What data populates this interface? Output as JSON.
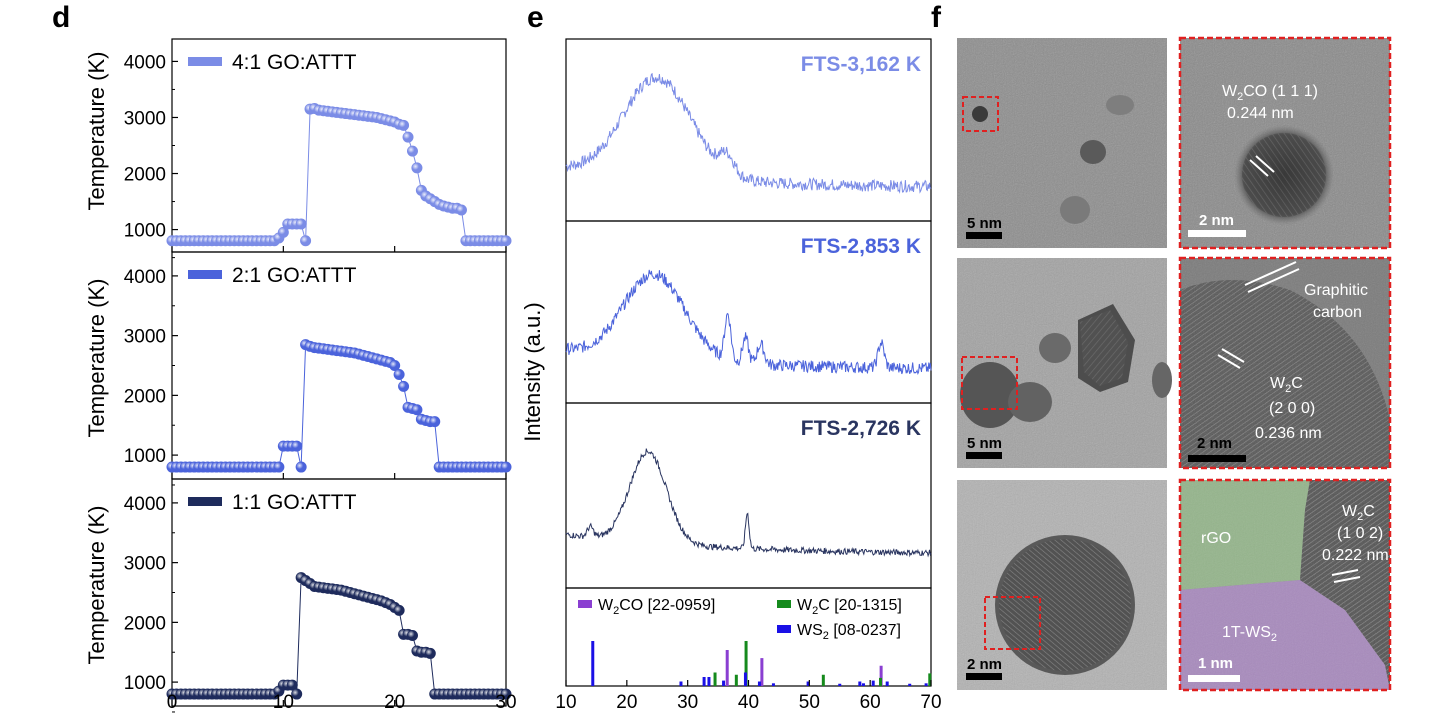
{
  "panel_labels": {
    "d": "d",
    "e": "e",
    "f": "f"
  },
  "chart_data": [
    {
      "type": "scatter",
      "panel": "d",
      "xlabel": "",
      "ylabel": "Temperature (K)",
      "xlim": [
        0,
        30
      ],
      "ylim": [
        600,
        4400
      ],
      "x_ticks": [
        "0",
        "10",
        "20",
        "30"
      ],
      "y_ticks": [
        "1000",
        "2000",
        "3000",
        "4000"
      ],
      "series": [
        {
          "name": "4:1 GO:ATTT",
          "color": "#7b8ce6",
          "x": [
            0,
            0.4,
            0.8,
            1.2,
            1.6,
            2,
            2.4,
            2.8,
            3.2,
            3.6,
            4,
            4.4,
            4.8,
            5.2,
            5.6,
            6,
            6.4,
            6.8,
            7.2,
            7.6,
            8,
            8.4,
            8.8,
            9.2,
            9.6,
            10,
            10.4,
            10.8,
            11.2,
            11.6,
            12,
            12.4,
            12.8,
            13.2,
            13.6,
            14,
            14.4,
            14.8,
            15.2,
            15.6,
            16,
            16.4,
            16.8,
            17.2,
            17.6,
            18,
            18.4,
            18.8,
            19.2,
            19.6,
            20,
            20.4,
            20.8,
            21.2,
            21.6,
            22,
            22.4,
            22.8,
            23.2,
            23.6,
            24,
            24.4,
            24.8,
            25.2,
            25.6,
            26,
            26.4,
            26.8,
            27.2,
            27.6,
            28,
            28.4,
            28.8,
            29.2,
            29.6,
            30
          ],
          "y": [
            800,
            800,
            800,
            800,
            800,
            800,
            800,
            800,
            800,
            800,
            800,
            800,
            800,
            800,
            800,
            800,
            800,
            800,
            800,
            800,
            800,
            800,
            800,
            800,
            850,
            950,
            1100,
            1100,
            1100,
            1100,
            800,
            3150,
            3160,
            3130,
            3120,
            3110,
            3100,
            3090,
            3080,
            3070,
            3060,
            3050,
            3040,
            3030,
            3020,
            3010,
            3000,
            2980,
            2960,
            2940,
            2920,
            2880,
            2860,
            2650,
            2400,
            2100,
            1700,
            1600,
            1550,
            1500,
            1450,
            1420,
            1400,
            1380,
            1380,
            1350,
            800,
            800,
            800,
            800,
            800,
            800,
            800,
            800,
            800,
            800
          ]
        },
        {
          "name": "2:1 GO:ATTT",
          "color": "#4b63db",
          "x": [
            0,
            0.4,
            0.8,
            1.2,
            1.6,
            2,
            2.4,
            2.8,
            3.2,
            3.6,
            4,
            4.4,
            4.8,
            5.2,
            5.6,
            6,
            6.4,
            6.8,
            7.2,
            7.6,
            8,
            8.4,
            8.8,
            9.2,
            9.6,
            10,
            10.4,
            10.8,
            11.2,
            11.6,
            12,
            12.4,
            12.8,
            13.2,
            13.6,
            14,
            14.4,
            14.8,
            15.2,
            15.6,
            16,
            16.4,
            16.8,
            17.2,
            17.6,
            18,
            18.4,
            18.8,
            19.2,
            19.6,
            20,
            20.4,
            20.8,
            21.2,
            21.6,
            22,
            22.4,
            22.8,
            23.2,
            23.6,
            24,
            24.4,
            24.8,
            25.2,
            25.6,
            26,
            26.4,
            26.8,
            27.2,
            27.6,
            28,
            28.4,
            28.8,
            29.2,
            29.6,
            30
          ],
          "y": [
            800,
            800,
            800,
            800,
            800,
            800,
            800,
            800,
            800,
            800,
            800,
            800,
            800,
            800,
            800,
            800,
            800,
            800,
            800,
            800,
            800,
            800,
            800,
            800,
            800,
            1150,
            1150,
            1150,
            1150,
            800,
            2850,
            2820,
            2800,
            2790,
            2780,
            2770,
            2760,
            2750,
            2740,
            2730,
            2720,
            2710,
            2690,
            2670,
            2650,
            2630,
            2610,
            2590,
            2570,
            2550,
            2500,
            2350,
            2150,
            1800,
            1780,
            1760,
            1600,
            1580,
            1560,
            1560,
            800,
            800,
            800,
            800,
            800,
            800,
            800,
            800,
            800,
            800,
            800,
            800,
            800,
            800,
            800,
            800
          ]
        },
        {
          "name": "1:1 GO:ATTT",
          "color": "#1e2b5c",
          "x": [
            0,
            0.4,
            0.8,
            1.2,
            1.6,
            2,
            2.4,
            2.8,
            3.2,
            3.6,
            4,
            4.4,
            4.8,
            5.2,
            5.6,
            6,
            6.4,
            6.8,
            7.2,
            7.6,
            8,
            8.4,
            8.8,
            9.2,
            9.6,
            10,
            10.4,
            10.8,
            11.2,
            11.6,
            12,
            12.4,
            12.8,
            13.2,
            13.6,
            14,
            14.4,
            14.8,
            15.2,
            15.6,
            16,
            16.4,
            16.8,
            17.2,
            17.6,
            18,
            18.4,
            18.8,
            19.2,
            19.6,
            20,
            20.4,
            20.8,
            21.2,
            21.6,
            22,
            22.4,
            22.8,
            23.2,
            23.6,
            24,
            24.4,
            24.8,
            25.2,
            25.6,
            26,
            26.4,
            26.8,
            27.2,
            27.6,
            28,
            28.4,
            28.8,
            29.2,
            29.6,
            30
          ],
          "y": [
            800,
            800,
            800,
            800,
            800,
            800,
            800,
            800,
            800,
            800,
            800,
            800,
            800,
            800,
            800,
            800,
            800,
            800,
            800,
            800,
            800,
            800,
            800,
            800,
            850,
            950,
            950,
            950,
            800,
            2750,
            2700,
            2650,
            2600,
            2590,
            2580,
            2570,
            2560,
            2550,
            2540,
            2520,
            2500,
            2480,
            2460,
            2440,
            2420,
            2400,
            2380,
            2360,
            2330,
            2300,
            2250,
            2200,
            1800,
            1800,
            1780,
            1520,
            1500,
            1500,
            1480,
            800,
            800,
            800,
            800,
            800,
            800,
            800,
            800,
            800,
            800,
            800,
            800,
            800,
            800,
            800,
            800,
            800
          ]
        }
      ]
    },
    {
      "type": "line",
      "panel": "e",
      "xlabel": "",
      "ylabel": "Intensity (a.u.)",
      "xlim": [
        10,
        70
      ],
      "x_ticks": [
        "10",
        "20",
        "30",
        "40",
        "50",
        "60",
        "70"
      ],
      "series": [
        {
          "name": "FTS-3,162 K",
          "color": "#7b8ce6",
          "peaks": [
            [
              25,
              1.0,
              5.5
            ],
            [
              36.5,
              0.18,
              1.2
            ]
          ]
        },
        {
          "name": "FTS-2,853 K",
          "color": "#4b63db",
          "peaks": [
            [
              24.5,
              0.85,
              5
            ],
            [
              36.6,
              0.45,
              0.5
            ],
            [
              39.5,
              0.25,
              0.5
            ],
            [
              42,
              0.2,
              0.6
            ],
            [
              61.8,
              0.25,
              0.5
            ]
          ]
        },
        {
          "name": "FTS-2,726 K",
          "color": "#2a3560",
          "peaks": [
            [
              23.5,
              0.9,
              3
            ],
            [
              39.8,
              0.35,
              0.3
            ],
            [
              14,
              0.1,
              0.5
            ]
          ]
        }
      ],
      "reference": [
        {
          "name": "W2CO [22-0959]",
          "label_main": "W",
          "label_sub": "2",
          "label_rest": "CO [22-0959]",
          "color": "#8a3fd1",
          "lines": [
            [
              36.5,
              0.8
            ],
            [
              42.2,
              0.62
            ],
            [
              61.8,
              0.45
            ]
          ]
        },
        {
          "name": "W2C [20-1315]",
          "label_main": "W",
          "label_sub": "2",
          "label_rest": "C [20-1315]",
          "color": "#158a1d",
          "lines": [
            [
              34.5,
              0.3
            ],
            [
              38,
              0.25
            ],
            [
              39.6,
              1.0
            ],
            [
              52.3,
              0.25
            ],
            [
              61.7,
              0.18
            ],
            [
              69.8,
              0.28
            ],
            [
              75,
              0
            ]
          ]
        },
        {
          "name": "WS2 [08-0237]",
          "label_main": "WS",
          "label_sub": "2",
          "label_rest": " [08-0237]",
          "color": "#1a10e6",
          "lines": [
            [
              14.4,
              1.0
            ],
            [
              28.9,
              0.1
            ],
            [
              32.7,
              0.2
            ],
            [
              33.5,
              0.2
            ],
            [
              35.9,
              0.12
            ],
            [
              39.5,
              0.3
            ],
            [
              41.8,
              0.1
            ],
            [
              44.1,
              0.06
            ],
            [
              49.8,
              0.1
            ],
            [
              55,
              0.05
            ],
            [
              58.3,
              0.1
            ],
            [
              58.9,
              0.06
            ],
            [
              60.5,
              0.12
            ],
            [
              62.8,
              0.1
            ],
            [
              66.5,
              0.05
            ],
            [
              69.2,
              0.06
            ]
          ]
        }
      ]
    }
  ],
  "tem": {
    "r1_scale_left": "5 nm",
    "r1_scale_right": "2 nm",
    "r1_label_main": "W",
    "r1_label_sub": "2",
    "r1_label_rest": "CO (1 1 1)",
    "r1_label_d": "0.244 nm",
    "r2_scale_left": "5 nm",
    "r2_scale_right": "2 nm",
    "r2_graphitic_1": "Graphitic",
    "r2_graphitic_2": "carbon",
    "r2_label_main": "W",
    "r2_label_sub": "2",
    "r2_label_rest": "C",
    "r2_label_hkl": "(2 0 0)",
    "r2_label_d": "0.236 nm",
    "r3_scale_left": "2 nm",
    "r3_scale_right": "1 nm",
    "r3_rgo": "rGO",
    "r3_ws2_main": "1T-WS",
    "r3_ws2_sub": "2",
    "r3_label_main": "W",
    "r3_label_sub": "2",
    "r3_label_rest": "C",
    "r3_label_hkl": "(1 0 2)",
    "r3_label_d": "0.222 nm"
  }
}
